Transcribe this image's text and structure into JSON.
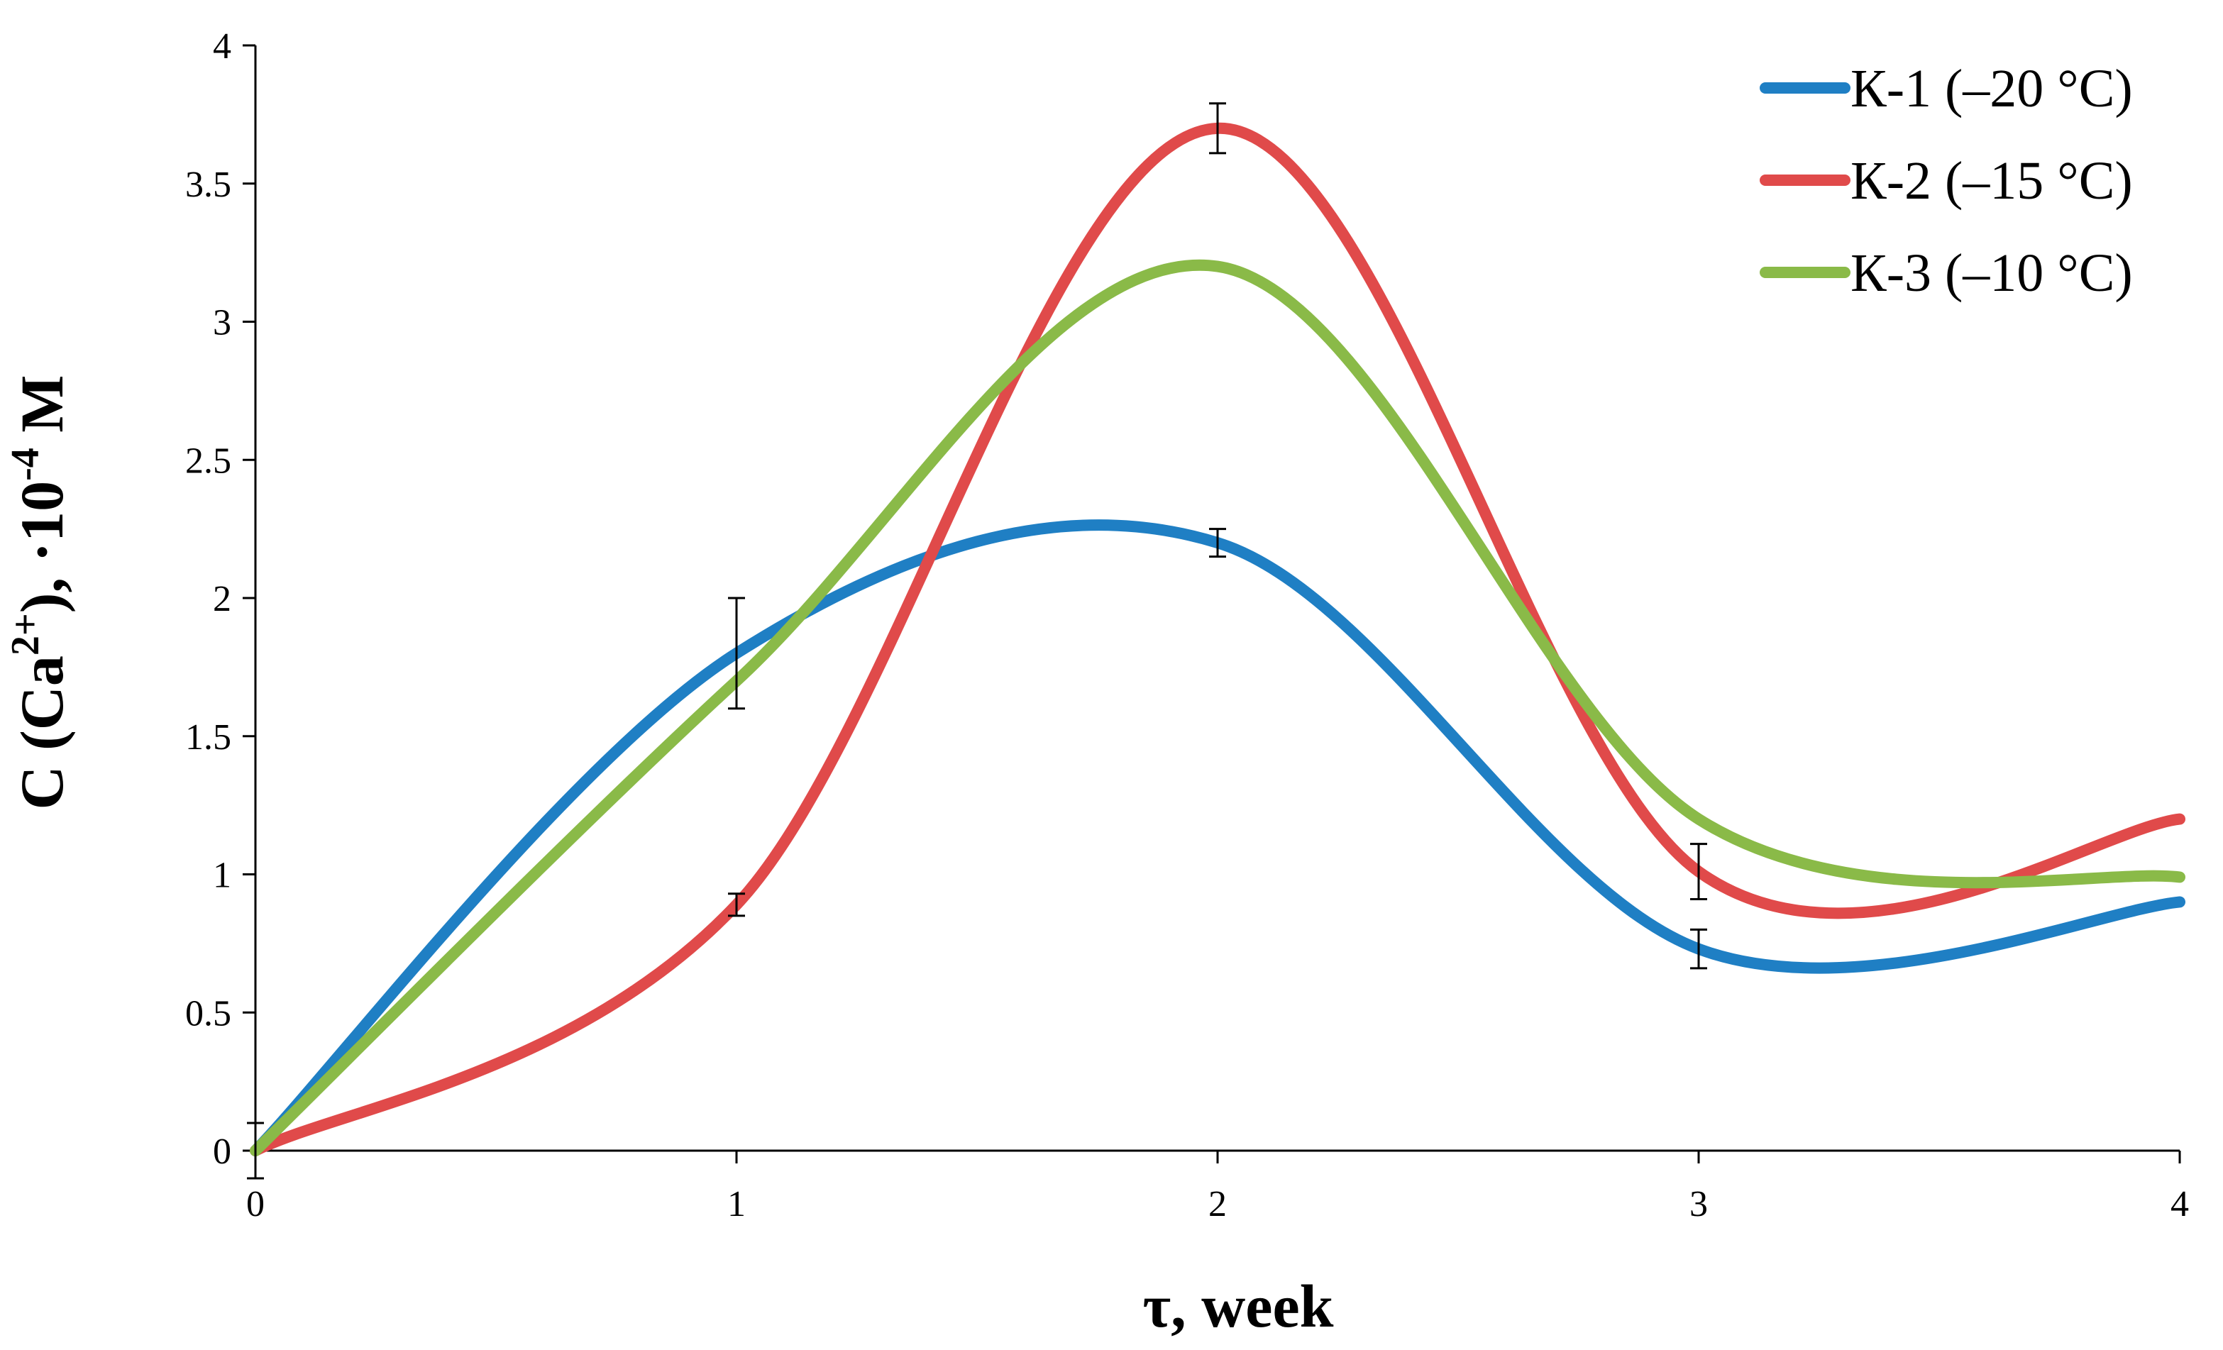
{
  "chart_data": {
    "type": "line",
    "x": [
      0,
      1,
      2,
      3,
      4
    ],
    "xlim": [
      0,
      4
    ],
    "ylim": [
      0,
      4
    ],
    "xticks": [
      0,
      1,
      2,
      3,
      4
    ],
    "yticks": [
      0,
      0.5,
      1,
      1.5,
      2,
      2.5,
      3,
      3.5,
      4
    ],
    "xtick_labels": [
      "0",
      "1",
      "2",
      "3",
      "4"
    ],
    "ytick_labels": [
      "0",
      "0.5",
      "1",
      "1.5",
      "2",
      "2.5",
      "3",
      "3.5",
      "4"
    ],
    "xlabel": "τ, week",
    "ylabel_parts": {
      "p1": "C (Ca",
      "sup1": "2+",
      "p2": "), ·10",
      "sup2": "-4",
      "p3": " M"
    },
    "grid": false,
    "legend_position": "top-right",
    "series": [
      {
        "name": "К-1 (–20 °C)",
        "color": "#1f7fc4",
        "values": [
          0,
          1.8,
          2.2,
          0.73,
          0.9
        ],
        "errors": [
          0.1,
          0.2,
          0.05,
          0.07,
          null
        ]
      },
      {
        "name": "К-2 (–15 °C)",
        "color": "#e04a4a",
        "values": [
          0,
          0.89,
          3.7,
          1.01,
          1.2
        ],
        "errors": [
          null,
          0.04,
          0.09,
          0.1,
          null
        ]
      },
      {
        "name": "К-3 (–10 °C)",
        "color": "#8aba48",
        "values": [
          0,
          1.7,
          3.2,
          1.2,
          0.99
        ],
        "errors": [
          null,
          null,
          null,
          null,
          null
        ]
      }
    ]
  }
}
